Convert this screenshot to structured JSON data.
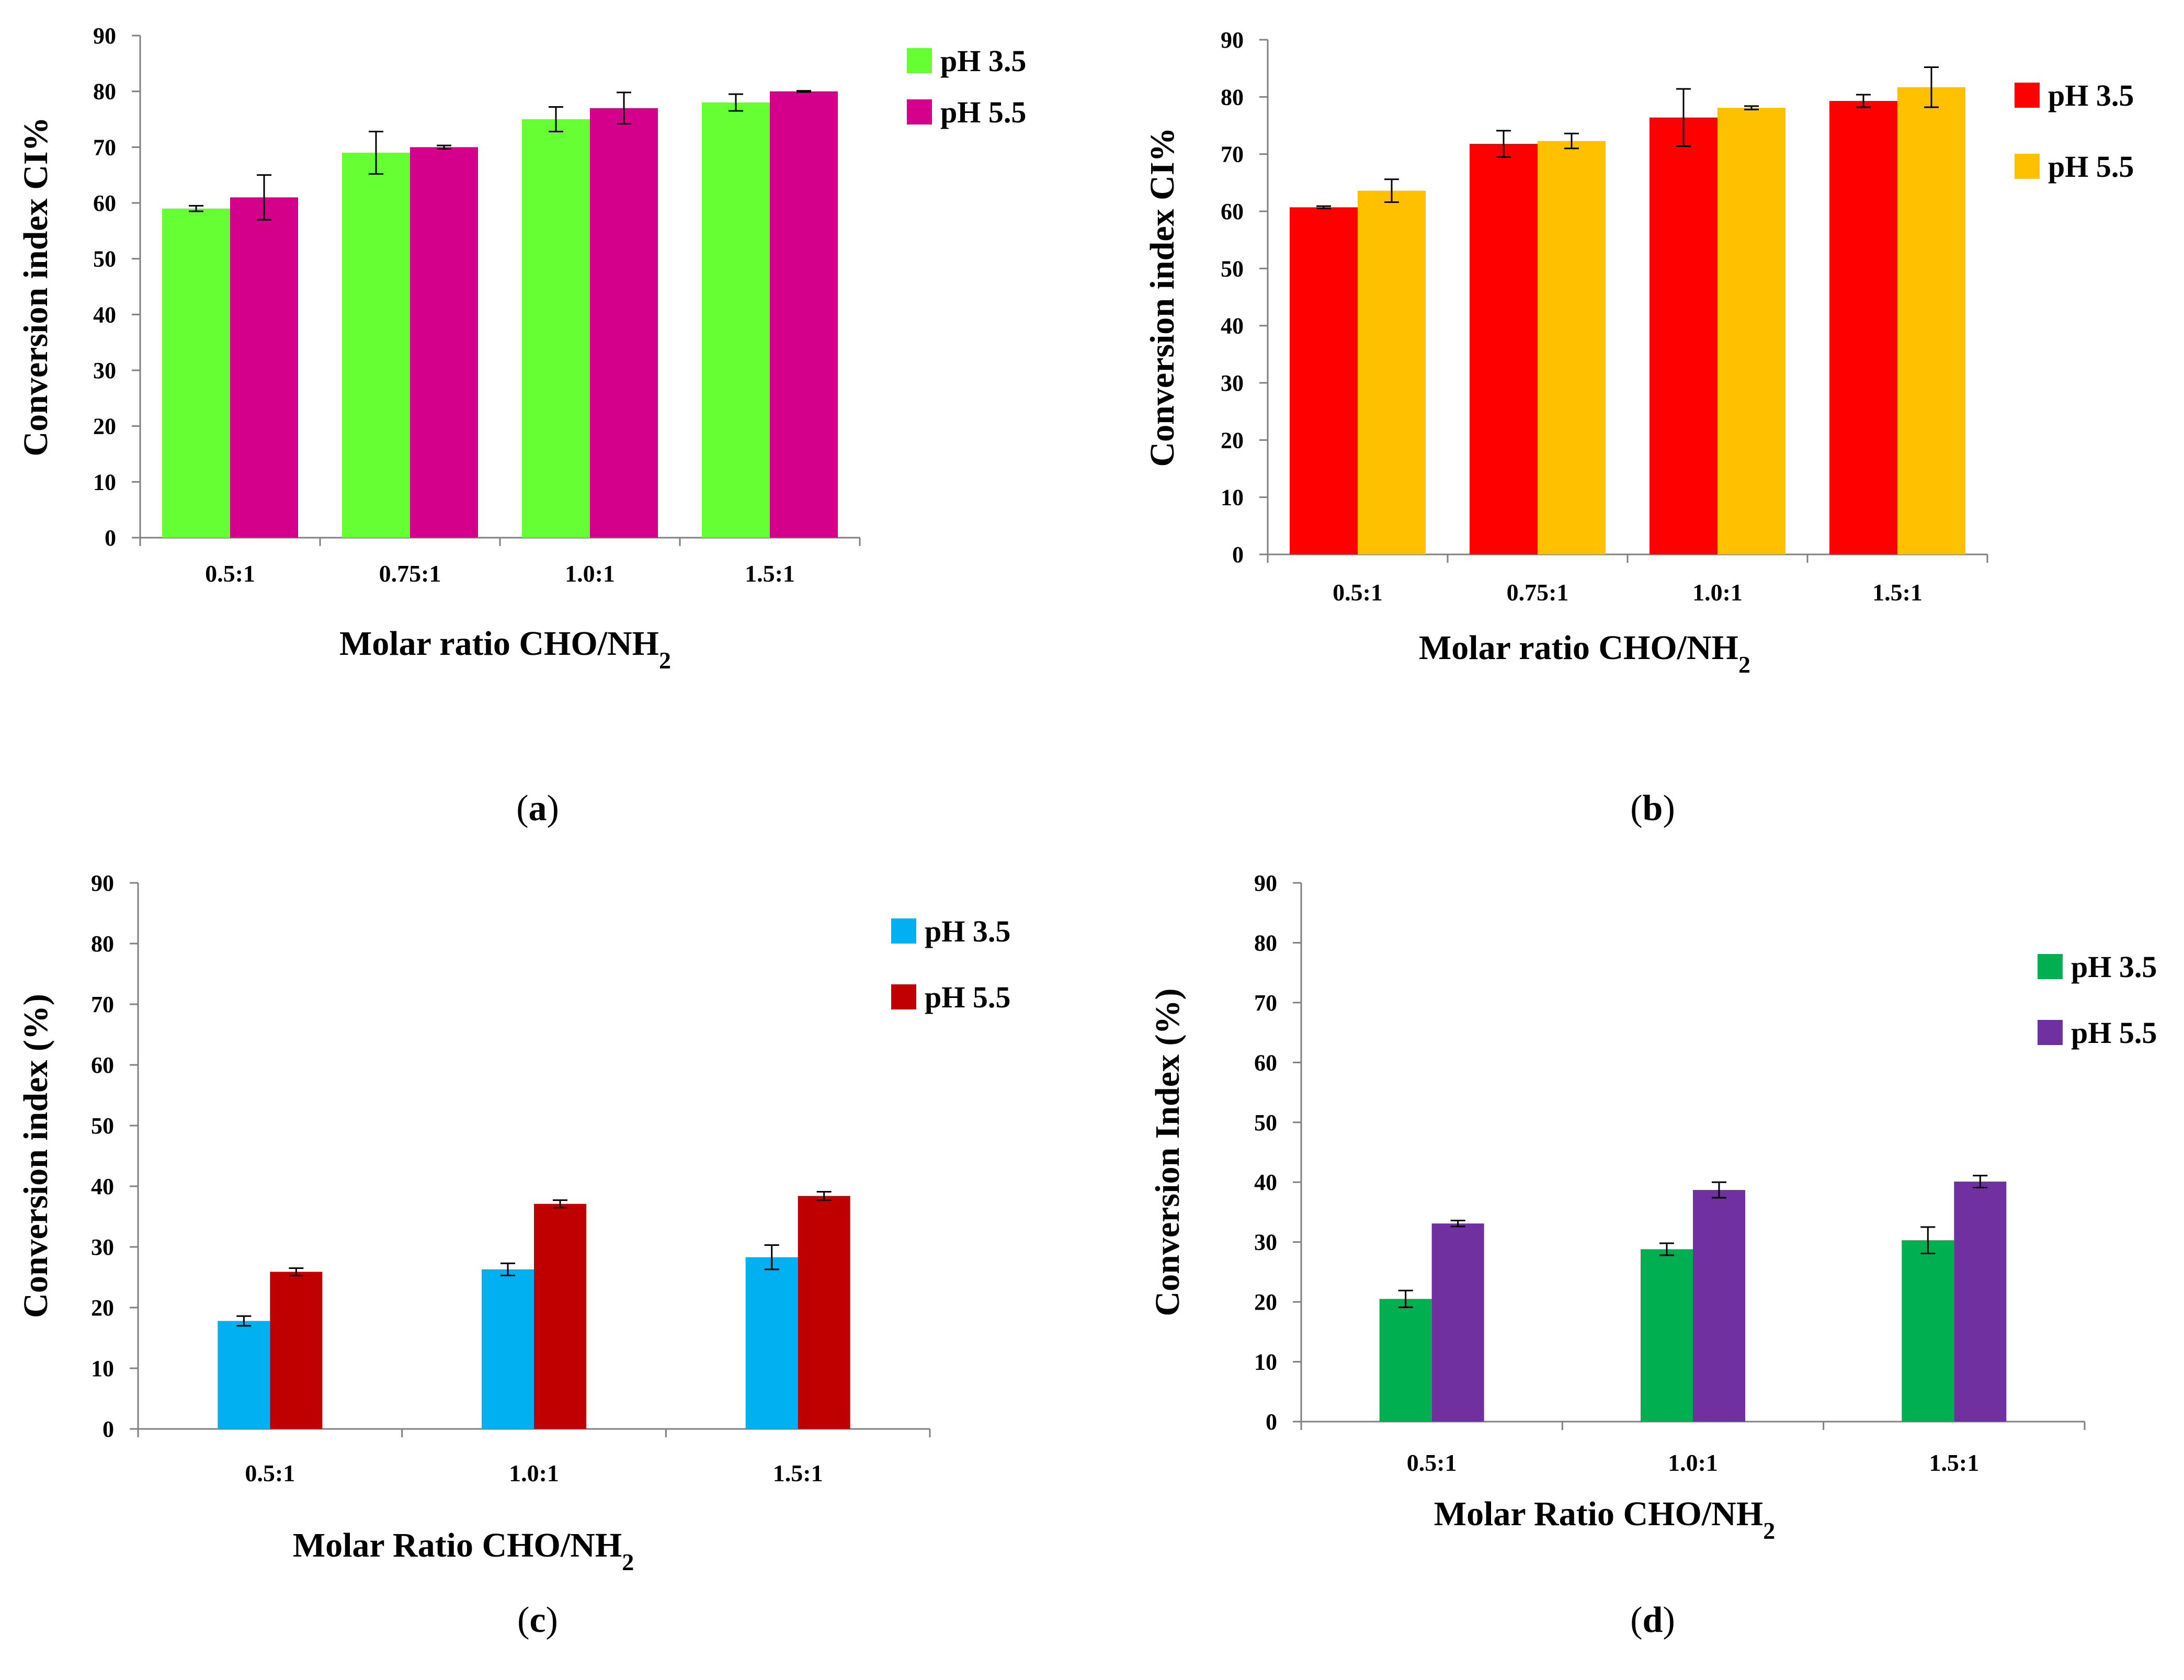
{
  "chart_data": [
    {
      "panel": "a",
      "type": "bar",
      "caption_letter": "a",
      "xlabel": "Molar ratio CHO/NH",
      "xlabel_sub": "2",
      "ylabel": "Conversion index CI%",
      "ylim": [
        0,
        90
      ],
      "yticks": [
        0,
        10,
        20,
        30,
        40,
        50,
        60,
        70,
        80,
        90
      ],
      "grid": false,
      "legend_position": "top-right",
      "categories": [
        "0.5:1",
        "0.75:1",
        "1.0:1",
        "1.5:1"
      ],
      "series": [
        {
          "name": "pH 3.5",
          "color": "#66ff33",
          "values": [
            59,
            69,
            75,
            78
          ],
          "errors": [
            0.5,
            3.8,
            2.2,
            1.5
          ]
        },
        {
          "name": "pH 5.5",
          "color": "#d4008c",
          "values": [
            61,
            70,
            77,
            80
          ],
          "errors": [
            4,
            0.3,
            2.8,
            0.1
          ]
        }
      ]
    },
    {
      "panel": "b",
      "type": "bar",
      "caption_letter": "b",
      "xlabel": "Molar ratio CHO/NH",
      "xlabel_sub": "2",
      "ylabel": "Conversion index CI%",
      "ylim": [
        0,
        90
      ],
      "yticks": [
        0,
        10,
        20,
        30,
        40,
        50,
        60,
        70,
        80,
        90
      ],
      "grid": false,
      "legend_position": "top-right",
      "categories": [
        "0.5:1",
        "0.75:1",
        "1.0:1",
        "1.5:1"
      ],
      "series": [
        {
          "name": "pH 3.5",
          "color": "#ff0000",
          "values": [
            60.7,
            71.8,
            76.4,
            79.3
          ],
          "errors": [
            0.2,
            2.3,
            5,
            1.1
          ]
        },
        {
          "name": "pH 5.5",
          "color": "#ffc000",
          "values": [
            63.6,
            72.3,
            78.1,
            81.7
          ],
          "errors": [
            2,
            1.3,
            0.3,
            3.5
          ]
        }
      ]
    },
    {
      "panel": "c",
      "type": "bar",
      "caption_letter": "c",
      "xlabel": "Molar Ratio CHO/NH",
      "xlabel_sub": "2",
      "ylabel": "Conversion index (%)",
      "ylim": [
        0,
        90
      ],
      "yticks": [
        0,
        10,
        20,
        30,
        40,
        50,
        60,
        70,
        80,
        90
      ],
      "grid": false,
      "legend_position": "top-right",
      "categories": [
        "0.5:1",
        "1.0:1",
        "1.5:1"
      ],
      "series": [
        {
          "name": "pH 3.5",
          "color": "#00b0f0",
          "values": [
            17.8,
            26.3,
            28.3
          ],
          "errors": [
            0.8,
            1,
            2
          ]
        },
        {
          "name": "pH 5.5",
          "color": "#c00000",
          "values": [
            25.9,
            37.1,
            38.4
          ],
          "errors": [
            0.6,
            0.6,
            0.7
          ]
        }
      ]
    },
    {
      "panel": "d",
      "type": "bar",
      "caption_letter": "d",
      "xlabel": "Molar Ratio CHO/NH",
      "xlabel_sub": "2",
      "ylabel": "Conversion Index (%)",
      "ylim": [
        0,
        90
      ],
      "yticks": [
        0,
        10,
        20,
        30,
        40,
        50,
        60,
        70,
        80,
        90
      ],
      "grid": false,
      "legend_position": "right",
      "categories": [
        "0.5:1",
        "1.0:1",
        "1.5:1"
      ],
      "series": [
        {
          "name": "pH 3.5",
          "color": "#00b050",
          "values": [
            20.5,
            28.8,
            30.3
          ],
          "errors": [
            1.4,
            1,
            2.2
          ]
        },
        {
          "name": "pH 5.5",
          "color": "#7030a0",
          "values": [
            33.1,
            38.7,
            40.1
          ],
          "errors": [
            0.5,
            1.3,
            1
          ]
        }
      ]
    }
  ]
}
